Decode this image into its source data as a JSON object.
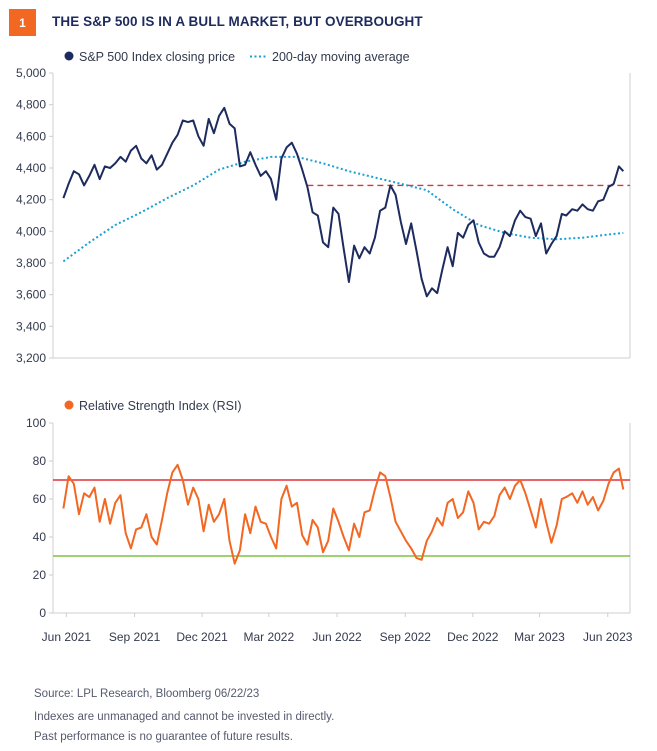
{
  "header": {
    "figure_number": "1",
    "title": "THE S&P 500 IS IN A BULL MARKET, BUT OVERBOUGHT"
  },
  "colors": {
    "accent": "#f26722",
    "price": "#1d2b5e",
    "moving_average": "#1aa0d2",
    "rsi": "#f26722",
    "threshold_red": "#e0323c",
    "oversold_green": "#7dc242",
    "grid": "#cfcfcf"
  },
  "chart_data": [
    {
      "type": "line",
      "legend": [
        "S&P 500 Index closing price",
        "200-day moving average"
      ],
      "ylim": [
        3200,
        5000
      ],
      "yticks": [
        5000,
        4800,
        4600,
        4400,
        4200,
        4000,
        3800,
        3600,
        3400,
        3200
      ],
      "ytick_labels": [
        "5,000",
        "4,800",
        "4,600",
        "4,400",
        "4,200",
        "4,000",
        "3,800",
        "3,600",
        "3,400",
        "3,200"
      ],
      "reference_line": 4290,
      "series": [
        {
          "name": "S&P 500 Index closing price",
          "x": [
            "2021-05-28",
            "2021-06-04",
            "2021-06-11",
            "2021-06-18",
            "2021-06-25",
            "2021-07-02",
            "2021-07-09",
            "2021-07-16",
            "2021-07-23",
            "2021-07-30",
            "2021-08-06",
            "2021-08-13",
            "2021-08-20",
            "2021-08-27",
            "2021-09-03",
            "2021-09-10",
            "2021-09-17",
            "2021-09-24",
            "2021-10-01",
            "2021-10-08",
            "2021-10-15",
            "2021-10-22",
            "2021-10-29",
            "2021-11-05",
            "2021-11-12",
            "2021-11-19",
            "2021-11-26",
            "2021-12-03",
            "2021-12-10",
            "2021-12-17",
            "2021-12-24",
            "2021-12-31",
            "2022-01-07",
            "2022-01-14",
            "2022-01-21",
            "2022-01-28",
            "2022-02-04",
            "2022-02-11",
            "2022-02-18",
            "2022-02-25",
            "2022-03-04",
            "2022-03-11",
            "2022-03-18",
            "2022-03-25",
            "2022-04-01",
            "2022-04-08",
            "2022-04-15",
            "2022-04-22",
            "2022-04-29",
            "2022-05-06",
            "2022-05-13",
            "2022-05-20",
            "2022-05-27",
            "2022-06-03",
            "2022-06-10",
            "2022-06-17",
            "2022-06-24",
            "2022-07-01",
            "2022-07-08",
            "2022-07-15",
            "2022-07-22",
            "2022-07-29",
            "2022-08-05",
            "2022-08-12",
            "2022-08-19",
            "2022-08-26",
            "2022-09-02",
            "2022-09-09",
            "2022-09-16",
            "2022-09-23",
            "2022-09-30",
            "2022-10-07",
            "2022-10-14",
            "2022-10-21",
            "2022-10-28",
            "2022-11-04",
            "2022-11-11",
            "2022-11-18",
            "2022-11-25",
            "2022-12-02",
            "2022-12-09",
            "2022-12-16",
            "2022-12-23",
            "2022-12-30",
            "2023-01-06",
            "2023-01-13",
            "2023-01-20",
            "2023-01-27",
            "2023-02-03",
            "2023-02-10",
            "2023-02-17",
            "2023-02-24",
            "2023-03-03",
            "2023-03-10",
            "2023-03-17",
            "2023-03-24",
            "2023-03-31",
            "2023-04-06",
            "2023-04-14",
            "2023-04-21",
            "2023-04-28",
            "2023-05-05",
            "2023-05-12",
            "2023-05-19",
            "2023-05-26",
            "2023-06-02",
            "2023-06-09",
            "2023-06-16",
            "2023-06-22"
          ],
          "y": [
            4210,
            4300,
            4380,
            4360,
            4290,
            4350,
            4420,
            4330,
            4410,
            4400,
            4430,
            4470,
            4440,
            4510,
            4540,
            4460,
            4430,
            4480,
            4390,
            4420,
            4490,
            4560,
            4610,
            4700,
            4690,
            4700,
            4600,
            4540,
            4710,
            4620,
            4730,
            4780,
            4680,
            4650,
            4410,
            4420,
            4500,
            4420,
            4350,
            4380,
            4330,
            4200,
            4460,
            4530,
            4560,
            4490,
            4390,
            4280,
            4120,
            4100,
            3930,
            3900,
            4150,
            4110,
            3890,
            3680,
            3910,
            3830,
            3900,
            3860,
            3960,
            4130,
            4150,
            4290,
            4230,
            4060,
            3920,
            4050,
            3880,
            3700,
            3590,
            3640,
            3610,
            3760,
            3900,
            3780,
            3990,
            3960,
            4040,
            4070,
            3930,
            3860,
            3840,
            3840,
            3900,
            4000,
            3970,
            4070,
            4130,
            4090,
            4080,
            3970,
            4050,
            3860,
            3920,
            3970,
            4110,
            4100,
            4140,
            4130,
            4170,
            4140,
            4130,
            4190,
            4200,
            4280,
            4300,
            4410,
            4380
          ]
        },
        {
          "name": "200-day moving average",
          "x": [
            "2021-05-28",
            "2021-07-02",
            "2021-08-06",
            "2021-09-10",
            "2021-10-15",
            "2021-11-19",
            "2021-12-24",
            "2022-01-28",
            "2022-03-04",
            "2022-04-08",
            "2022-05-13",
            "2022-06-17",
            "2022-07-22",
            "2022-08-26",
            "2022-09-30",
            "2022-11-04",
            "2022-12-09",
            "2023-01-13",
            "2023-02-17",
            "2023-03-24",
            "2023-04-28",
            "2023-06-02",
            "2023-06-22"
          ],
          "y": [
            3810,
            3930,
            4040,
            4120,
            4210,
            4290,
            4390,
            4440,
            4470,
            4470,
            4430,
            4380,
            4340,
            4300,
            4260,
            4140,
            4040,
            3990,
            3960,
            3950,
            3960,
            3980,
            3990
          ]
        }
      ]
    },
    {
      "type": "line",
      "legend": [
        "Relative Strength Index (RSI)"
      ],
      "ylim": [
        0,
        100
      ],
      "yticks": [
        100,
        80,
        60,
        40,
        20,
        0
      ],
      "ytick_labels": [
        "100",
        "80",
        "60",
        "40",
        "20",
        "0"
      ],
      "threshold_lines": [
        70,
        30
      ],
      "x_ticks": [
        "Jun 2021",
        "Sep 2021",
        "Dec 2021",
        "Mar 2022",
        "Jun 2022",
        "Sep 2022",
        "Dec 2022",
        "Mar 2023",
        "Jun 2023"
      ],
      "series": [
        {
          "name": "Relative Strength Index (RSI)",
          "x": [
            "2021-05-28",
            "2021-06-04",
            "2021-06-11",
            "2021-06-18",
            "2021-06-25",
            "2021-07-02",
            "2021-07-09",
            "2021-07-16",
            "2021-07-23",
            "2021-07-30",
            "2021-08-06",
            "2021-08-13",
            "2021-08-20",
            "2021-08-27",
            "2021-09-03",
            "2021-09-10",
            "2021-09-17",
            "2021-09-24",
            "2021-10-01",
            "2021-10-08",
            "2021-10-15",
            "2021-10-22",
            "2021-10-29",
            "2021-11-05",
            "2021-11-12",
            "2021-11-19",
            "2021-11-26",
            "2021-12-03",
            "2021-12-10",
            "2021-12-17",
            "2021-12-24",
            "2021-12-31",
            "2022-01-07",
            "2022-01-14",
            "2022-01-21",
            "2022-01-28",
            "2022-02-04",
            "2022-02-11",
            "2022-02-18",
            "2022-02-25",
            "2022-03-04",
            "2022-03-11",
            "2022-03-18",
            "2022-03-25",
            "2022-04-01",
            "2022-04-08",
            "2022-04-15",
            "2022-04-22",
            "2022-04-29",
            "2022-05-06",
            "2022-05-13",
            "2022-05-20",
            "2022-05-27",
            "2022-06-03",
            "2022-06-10",
            "2022-06-17",
            "2022-06-24",
            "2022-07-01",
            "2022-07-08",
            "2022-07-15",
            "2022-07-22",
            "2022-07-29",
            "2022-08-05",
            "2022-08-12",
            "2022-08-19",
            "2022-08-26",
            "2022-09-02",
            "2022-09-09",
            "2022-09-16",
            "2022-09-23",
            "2022-09-30",
            "2022-10-07",
            "2022-10-14",
            "2022-10-21",
            "2022-10-28",
            "2022-11-04",
            "2022-11-11",
            "2022-11-18",
            "2022-11-25",
            "2022-12-02",
            "2022-12-09",
            "2022-12-16",
            "2022-12-23",
            "2022-12-30",
            "2023-01-06",
            "2023-01-13",
            "2023-01-20",
            "2023-01-27",
            "2023-02-03",
            "2023-02-10",
            "2023-02-17",
            "2023-02-24",
            "2023-03-03",
            "2023-03-10",
            "2023-03-17",
            "2023-03-24",
            "2023-03-31",
            "2023-04-06",
            "2023-04-14",
            "2023-04-21",
            "2023-04-28",
            "2023-05-05",
            "2023-05-12",
            "2023-05-19",
            "2023-05-26",
            "2023-06-02",
            "2023-06-09",
            "2023-06-16",
            "2023-06-22"
          ],
          "y": [
            55,
            72,
            68,
            52,
            63,
            61,
            66,
            48,
            60,
            47,
            58,
            62,
            42,
            34,
            44,
            45,
            52,
            40,
            36,
            49,
            63,
            74,
            78,
            70,
            57,
            66,
            60,
            43,
            57,
            48,
            52,
            60,
            38,
            26,
            33,
            52,
            42,
            56,
            48,
            47,
            40,
            34,
            60,
            67,
            56,
            58,
            41,
            36,
            49,
            45,
            32,
            38,
            55,
            48,
            40,
            33,
            47,
            40,
            53,
            54,
            65,
            74,
            72,
            61,
            48,
            43,
            38,
            34,
            29,
            28,
            38,
            43,
            50,
            46,
            58,
            60,
            50,
            53,
            64,
            58,
            44,
            48,
            47,
            51,
            62,
            66,
            60,
            67,
            70,
            63,
            54,
            45,
            60,
            48,
            37,
            46,
            60,
            61,
            63,
            58,
            64,
            57,
            61,
            54,
            59,
            68,
            74,
            76,
            65
          ]
        }
      ]
    }
  ],
  "footnotes": {
    "source": "Source: LPL Research, Bloomberg  06/22/23",
    "line1": "Indexes are unmanaged and cannot be invested in directly.",
    "line2": "Past performance is no guarantee of future results."
  }
}
